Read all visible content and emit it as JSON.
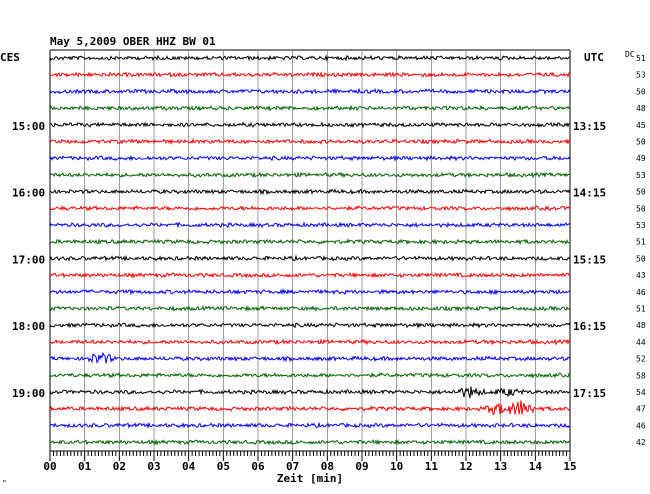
{
  "header": {
    "title": "May 5,2009   OBER HHZ BW 01",
    "left_label": "CES",
    "right_label": "UTC",
    "dc_label": "DC"
  },
  "footer": {
    "xlabel": "Zeit [min]",
    "corner_mark": "\""
  },
  "colors": {
    "cycle": [
      "#000000",
      "#ff0000",
      "#0000ff",
      "#006400"
    ],
    "grid": "#808080"
  },
  "chart_data": {
    "type": "line",
    "title": "May 5,2009   OBER HHZ BW 01",
    "xlabel": "Zeit [min]",
    "xlim": [
      0,
      15
    ],
    "x_ticks": [
      "00",
      "01",
      "02",
      "03",
      "04",
      "05",
      "06",
      "07",
      "08",
      "09",
      "10",
      "11",
      "12",
      "13",
      "14",
      "15"
    ],
    "traces_count": 24,
    "left_time_labels": [
      {
        "trace": 4,
        "label": "15:00"
      },
      {
        "trace": 8,
        "label": "16:00"
      },
      {
        "trace": 12,
        "label": "17:00"
      },
      {
        "trace": 16,
        "label": "18:00"
      },
      {
        "trace": 20,
        "label": "19:00"
      }
    ],
    "right_time_labels": [
      {
        "trace": 4,
        "label": "13:15"
      },
      {
        "trace": 8,
        "label": "14:15"
      },
      {
        "trace": 12,
        "label": "15:15"
      },
      {
        "trace": 16,
        "label": "16:15"
      },
      {
        "trace": 20,
        "label": "17:15"
      }
    ],
    "dc_offsets": [
      51,
      53,
      50,
      48,
      45,
      50,
      49,
      53,
      50,
      50,
      53,
      51,
      50,
      43,
      46,
      51,
      48,
      44,
      52,
      58,
      54,
      47,
      46,
      42
    ],
    "events": [
      {
        "trace": 18,
        "x_min": 1.45,
        "amplitude": "medium"
      },
      {
        "trace": 20,
        "x_min": 12.1,
        "amplitude": "medium"
      },
      {
        "trace": 20,
        "x_min": 13.2,
        "amplitude": "small"
      },
      {
        "trace": 21,
        "x_min": 12.9,
        "amplitude": "medium"
      },
      {
        "trace": 21,
        "x_min": 13.6,
        "amplitude": "large"
      }
    ]
  }
}
